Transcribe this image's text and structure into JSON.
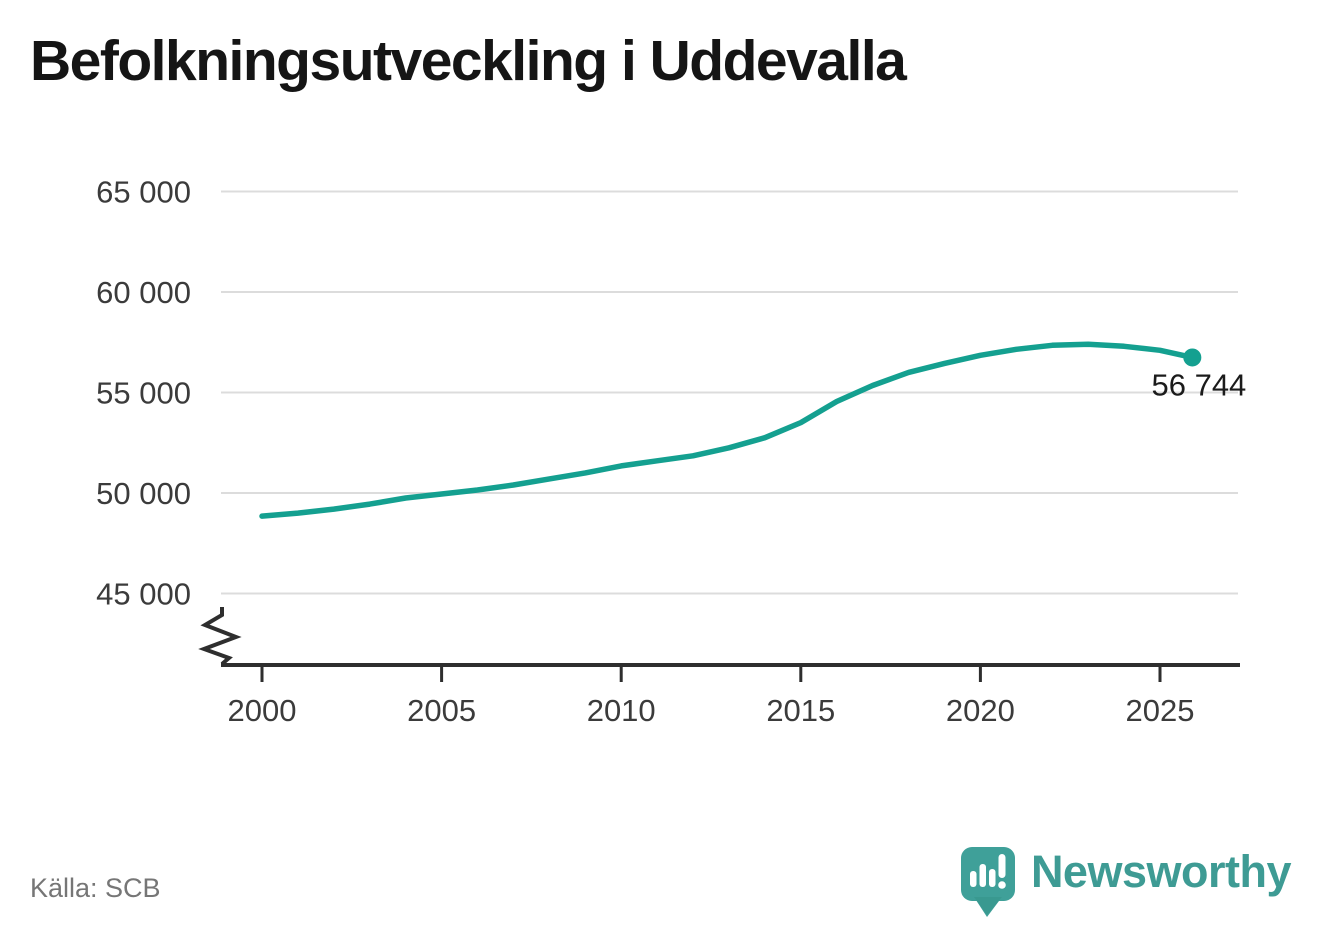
{
  "header": {
    "title": "Befolkningsutveckling i Uddevalla"
  },
  "footer": {
    "source": "Källa: SCB",
    "brand": "Newsworthy"
  },
  "colors": {
    "accent": "#14a090",
    "brand_teal": "#3e9b94",
    "grid": "#dcdcdc",
    "axis": "#2e2e2e",
    "tick_text": "#3b3b3b",
    "end_label_text": "#1b1b1b",
    "source_text": "#767676",
    "title_text": "#151515"
  },
  "chart_data": {
    "type": "line",
    "title": "Befolkningsutveckling i Uddevalla",
    "xlabel": "",
    "ylabel": "",
    "grid": "horizontal",
    "axis_break": true,
    "legend": "none",
    "xlim": [
      2000,
      2027
    ],
    "ylim": [
      45000,
      65000
    ],
    "x": [
      2000,
      2001,
      2002,
      2003,
      2004,
      2005,
      2006,
      2007,
      2008,
      2009,
      2010,
      2011,
      2012,
      2013,
      2014,
      2015,
      2016,
      2017,
      2018,
      2019,
      2020,
      2021,
      2022,
      2023,
      2024,
      2025,
      2025.9
    ],
    "values": [
      48850,
      49000,
      49200,
      49450,
      49750,
      49950,
      50150,
      50400,
      50700,
      51000,
      51350,
      51600,
      51850,
      52250,
      52750,
      53500,
      54550,
      55350,
      56000,
      56450,
      56850,
      57150,
      57350,
      57400,
      57300,
      57100,
      56744
    ],
    "end_point": {
      "x": 2025.9,
      "value": 56744,
      "label": "56 744"
    },
    "y_ticks": {
      "values": [
        65000,
        60000,
        55000,
        50000,
        45000
      ],
      "labels": [
        "65 000",
        "60 000",
        "55 000",
        "50 000",
        "45 000"
      ]
    },
    "x_ticks": {
      "values": [
        2000,
        2005,
        2010,
        2015,
        2020,
        2025
      ],
      "labels": [
        "2000",
        "2005",
        "2010",
        "2015",
        "2020",
        "2025"
      ]
    }
  }
}
